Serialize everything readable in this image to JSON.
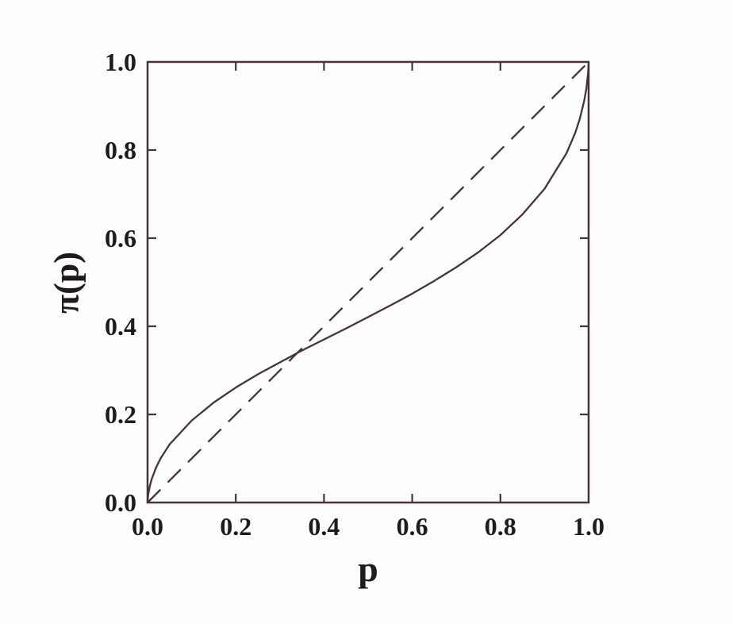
{
  "figure": {
    "background": "#fdfdfd",
    "line_color": "#46333a",
    "text_color": "#201a1c"
  },
  "chart_data": {
    "type": "line",
    "title": "",
    "xlabel": "p",
    "ylabel": "π(p)",
    "xlim": [
      0.0,
      1.0
    ],
    "ylim": [
      0.0,
      1.0
    ],
    "grid": false,
    "legend": "none",
    "xticks": [
      0.0,
      0.2,
      0.4,
      0.6,
      0.8,
      1.0
    ],
    "yticks": [
      0.0,
      0.2,
      0.4,
      0.6,
      0.8,
      1.0
    ],
    "xtick_labels": [
      "0.0",
      "0.2",
      "0.4",
      "0.6",
      "0.8",
      "1.0"
    ],
    "ytick_labels": [
      "0.0",
      "0.2",
      "0.4",
      "0.6",
      "0.8",
      "1.0"
    ],
    "series": [
      {
        "name": "probability-weighting-curve",
        "style": "solid",
        "points": [
          [
            0,
            0
          ],
          [
            0.001,
            0.015
          ],
          [
            0.005,
            0.037
          ],
          [
            0.01,
            0.055
          ],
          [
            0.02,
            0.081
          ],
          [
            0.03,
            0.101
          ],
          [
            0.05,
            0.132
          ],
          [
            0.1,
            0.186
          ],
          [
            0.15,
            0.227
          ],
          [
            0.2,
            0.261
          ],
          [
            0.25,
            0.291
          ],
          [
            0.3,
            0.318
          ],
          [
            0.35,
            0.345
          ],
          [
            0.4,
            0.37
          ],
          [
            0.45,
            0.395
          ],
          [
            0.5,
            0.421
          ],
          [
            0.55,
            0.447
          ],
          [
            0.6,
            0.474
          ],
          [
            0.65,
            0.503
          ],
          [
            0.7,
            0.534
          ],
          [
            0.75,
            0.568
          ],
          [
            0.8,
            0.607
          ],
          [
            0.85,
            0.654
          ],
          [
            0.9,
            0.712
          ],
          [
            0.95,
            0.793
          ],
          [
            0.97,
            0.84
          ],
          [
            0.98,
            0.871
          ],
          [
            0.99,
            0.912
          ],
          [
            0.995,
            0.94
          ],
          [
            0.999,
            0.977
          ],
          [
            1,
            1
          ]
        ]
      },
      {
        "name": "identity-line",
        "style": "dashed",
        "points": [
          [
            0,
            0
          ],
          [
            1,
            1
          ]
        ]
      }
    ]
  }
}
